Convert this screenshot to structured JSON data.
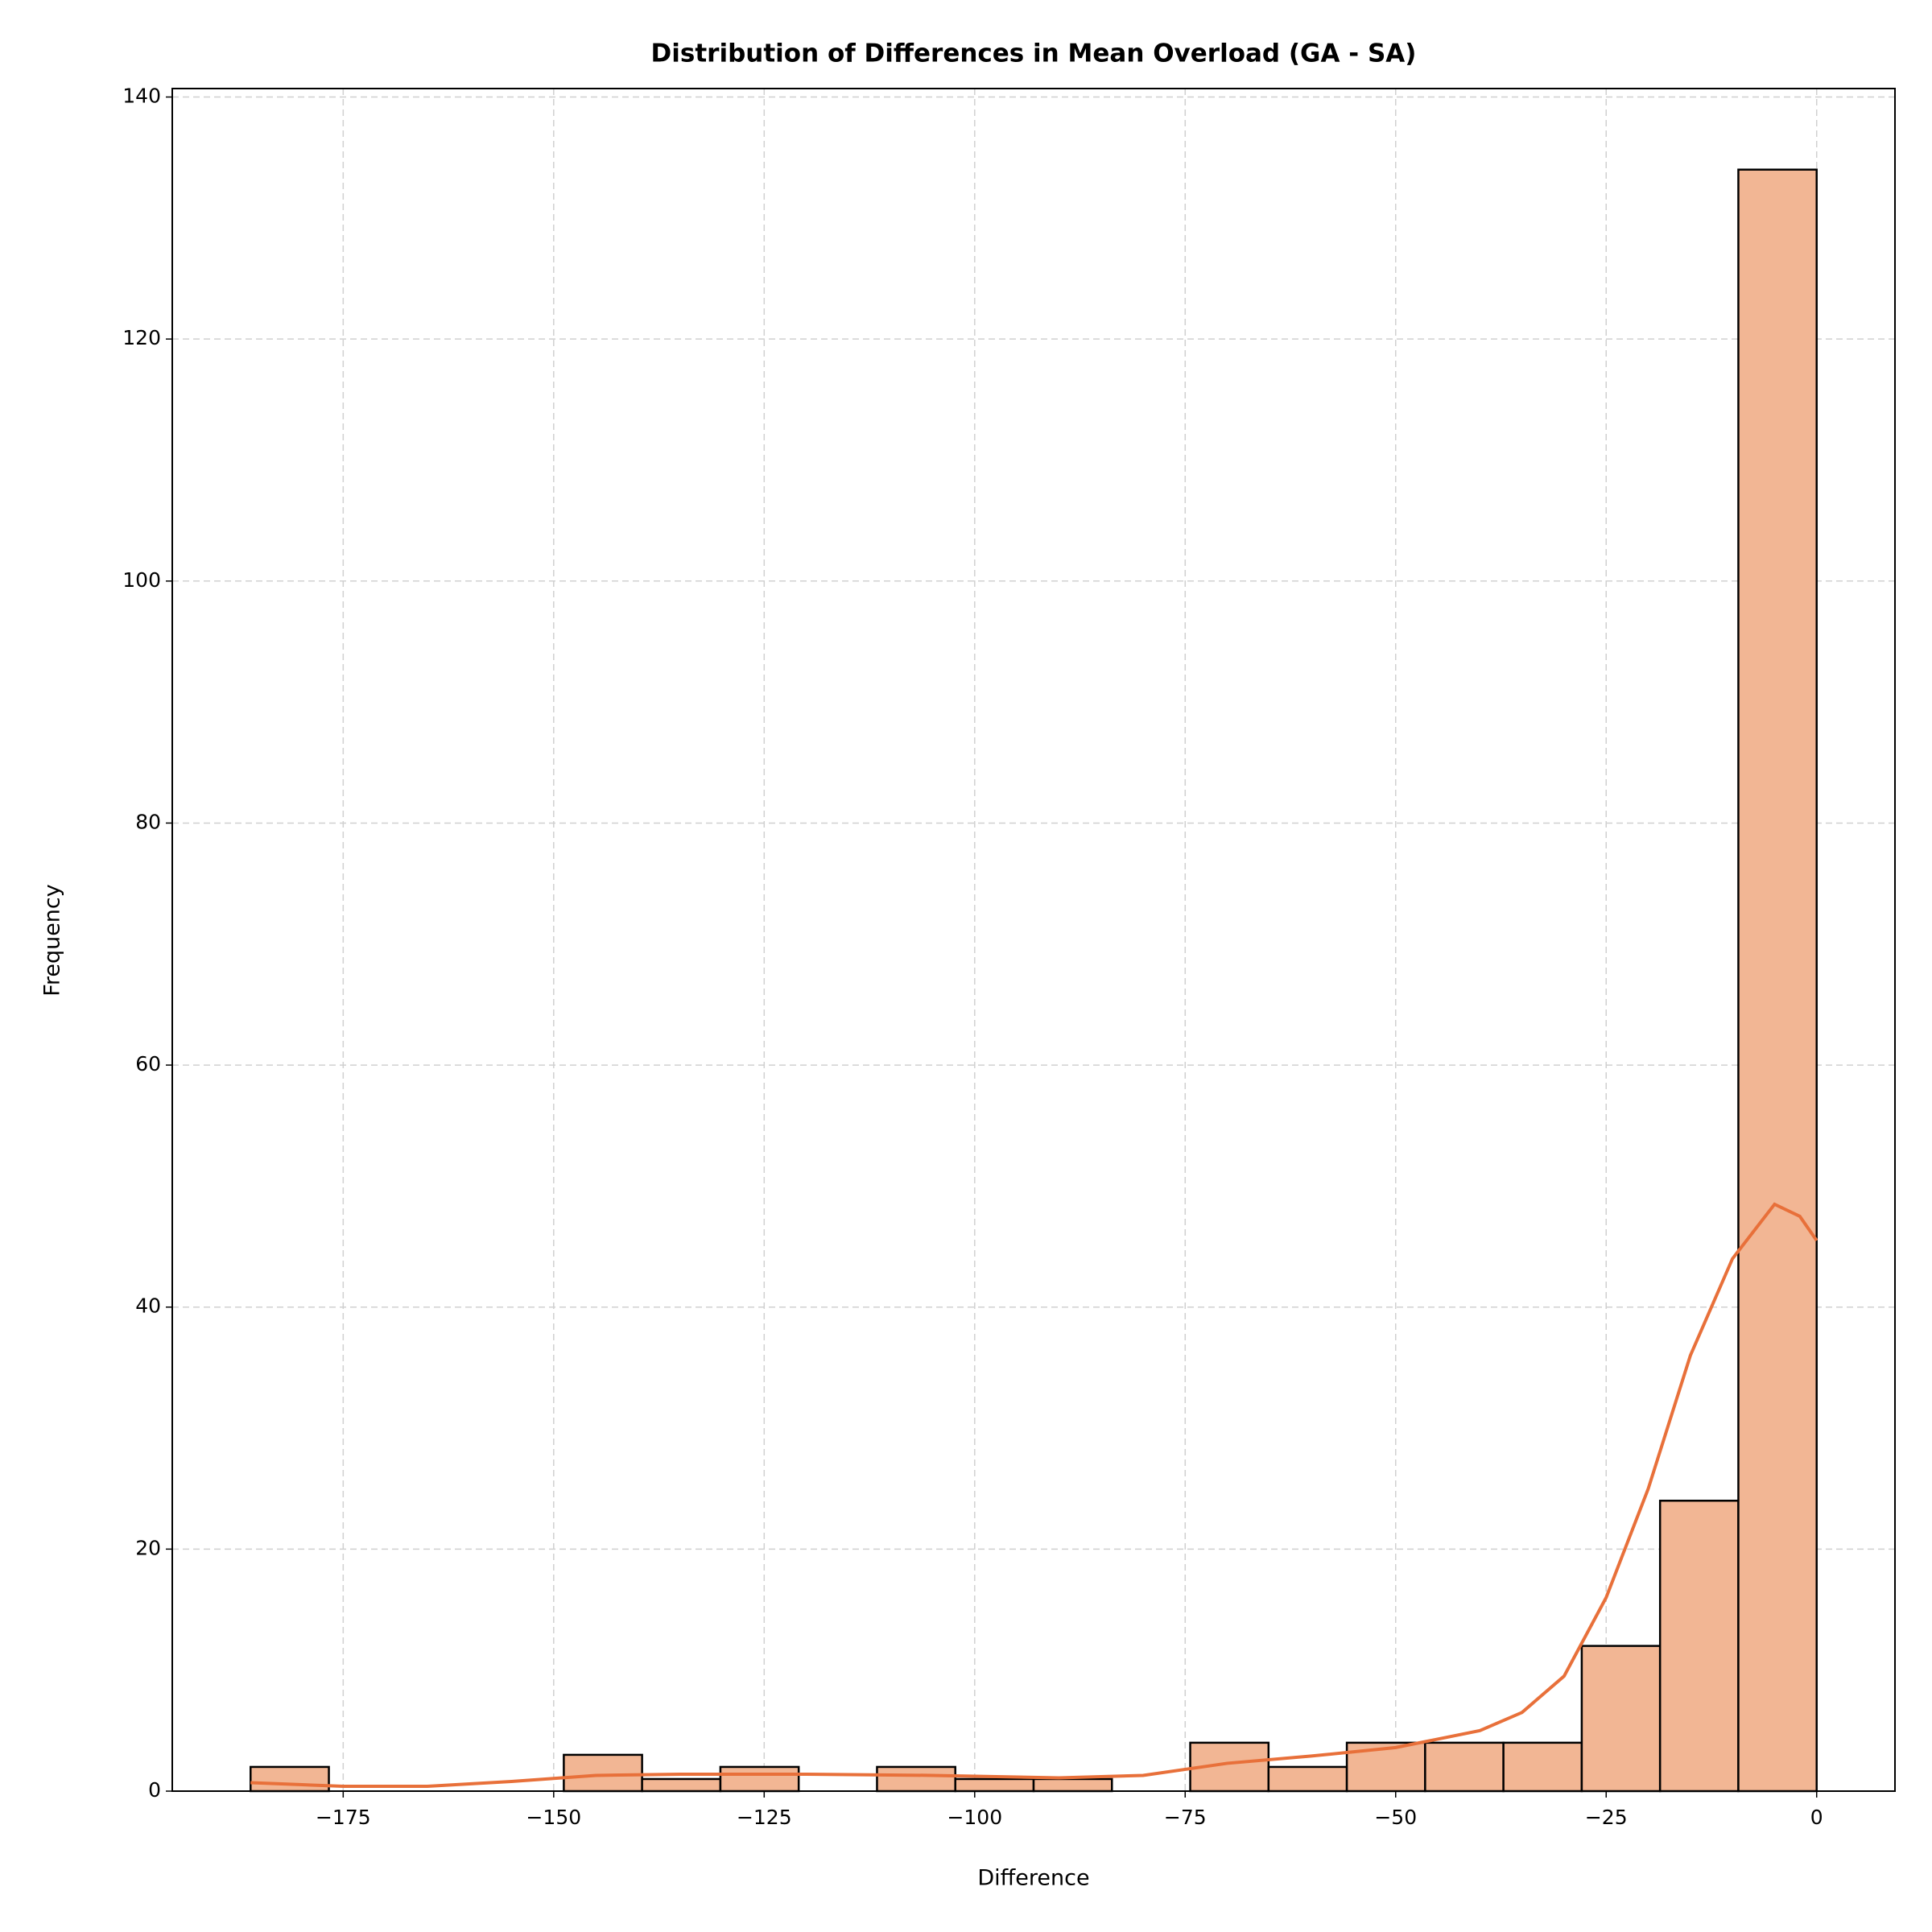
{
  "chart_data": {
    "type": "histogram",
    "title": "Distribution of Differences in Mean Overload (GA - SA)",
    "xlabel": "Difference",
    "ylabel": "Frequency",
    "bins": [
      -186,
      -176.7,
      -167.4,
      -158.1,
      -148.8,
      -139.5,
      -130.2,
      -120.9,
      -111.6,
      -102.3,
      -93,
      -83.7,
      -74.4,
      -65.1,
      -55.8,
      -46.5,
      -37.2,
      -27.9,
      -18.6,
      -9.3,
      0
    ],
    "counts": [
      2,
      0,
      0,
      0,
      3,
      1,
      2,
      0,
      2,
      1,
      1,
      0,
      4,
      2,
      4,
      4,
      4,
      12,
      24,
      134
    ],
    "color": "#f2b694",
    "edgecolor": "#000000",
    "kde": {
      "color": "#e8703a",
      "x": [
        -186,
        -175,
        -165,
        -155,
        -145,
        -135,
        -120,
        -105,
        -90,
        -80,
        -70,
        -60,
        -50,
        -40,
        -35,
        -30,
        -25,
        -20,
        -15,
        -10,
        -5,
        -2,
        0
      ],
      "y": [
        0.7,
        0.4,
        0.4,
        0.8,
        1.3,
        1.4,
        1.4,
        1.3,
        1.1,
        1.3,
        2.3,
        2.9,
        3.6,
        5,
        6.5,
        9.5,
        16,
        25,
        36,
        44,
        48.5,
        47.5,
        45.5
      ]
    },
    "xlim": [
      -195.3,
      9.3
    ],
    "ylim": [
      0,
      140.7
    ],
    "xticks": [
      {
        "value": -175,
        "label": "−175"
      },
      {
        "value": -150,
        "label": "−150"
      },
      {
        "value": -125,
        "label": "−125"
      },
      {
        "value": -100,
        "label": "−100"
      },
      {
        "value": -75,
        "label": "−75"
      },
      {
        "value": -50,
        "label": "−50"
      },
      {
        "value": -25,
        "label": "−25"
      },
      0
    ],
    "yticks": [
      0,
      20,
      40,
      60,
      80,
      100,
      120,
      140
    ],
    "grid": true
  }
}
